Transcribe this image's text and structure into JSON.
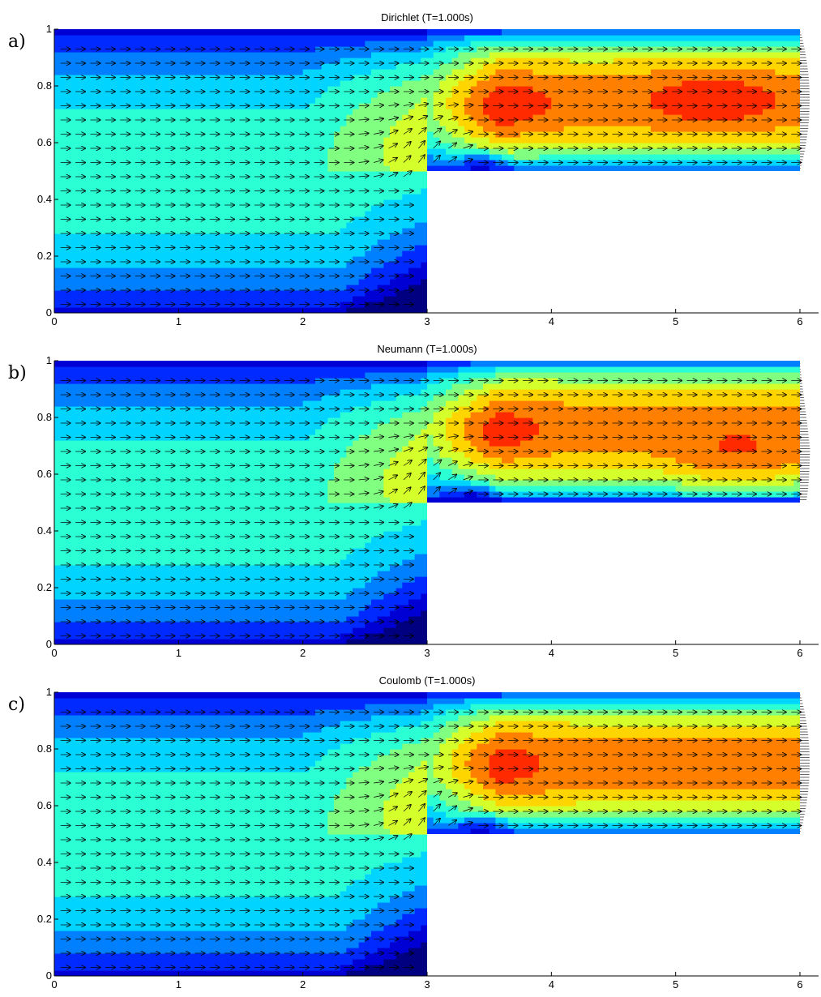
{
  "chart_data": [
    {
      "panel_label": "a)",
      "title": "Dirichlet (T=1.000s)",
      "type": "heatmap",
      "plot_kind": "filled contour of velocity magnitude with velocity vector field (quiver)",
      "domain_shape": "backward-facing step channel: inlet region 0<=x<=3, 0<=y<=1; outlet region 3<=x<=6, 0.5<=y<=1",
      "xlim": [
        0,
        6.15
      ],
      "ylim": [
        0,
        1
      ],
      "x_ticks": [
        0,
        1,
        2,
        3,
        4,
        5,
        6
      ],
      "x_tick_labels": [
        "0",
        "1",
        "2",
        "3",
        "4",
        "5",
        "6"
      ],
      "y_ticks": [
        0,
        0.2,
        0.4,
        0.6,
        0.8,
        1
      ],
      "y_tick_labels": [
        "0",
        "0.2",
        "0.4",
        "0.6",
        "0.8",
        "1"
      ],
      "colormap": "jet",
      "outlet_profile": "parabolic",
      "hotspots": [
        {
          "x": 3.45,
          "y": 0.72,
          "level": 0.82
        },
        {
          "x": 5.3,
          "y": 0.75,
          "level": 0.8
        }
      ],
      "recirculation": {
        "x": 3.45,
        "y": 0.53
      }
    },
    {
      "panel_label": "b)",
      "title": "Neumann (T=1.000s)",
      "type": "heatmap",
      "plot_kind": "filled contour of velocity magnitude with velocity vector field (quiver)",
      "domain_shape": "backward-facing step channel: inlet region 0<=x<=3, 0<=y<=1; outlet region 3<=x<=6, 0.5<=y<=1",
      "xlim": [
        0,
        6.15
      ],
      "ylim": [
        0,
        1
      ],
      "x_ticks": [
        0,
        1,
        2,
        3,
        4,
        5,
        6
      ],
      "x_tick_labels": [
        "0",
        "1",
        "2",
        "3",
        "4",
        "5",
        "6"
      ],
      "y_ticks": [
        0,
        0.2,
        0.4,
        0.6,
        0.8,
        1
      ],
      "y_tick_labels": [
        "0",
        "0.2",
        "0.4",
        "0.6",
        "0.8",
        "1"
      ],
      "colormap": "jet",
      "outlet_profile": "skewed, peak near y=0.6",
      "hotspots": [
        {
          "x": 3.35,
          "y": 0.74,
          "level": 0.82
        },
        {
          "x": 5.5,
          "y": 0.62,
          "level": 0.82
        }
      ],
      "recirculation": {
        "x": 3.35,
        "y": 0.53
      }
    },
    {
      "panel_label": "c)",
      "title": "Coulomb (T=1.000s)",
      "type": "heatmap",
      "plot_kind": "filled contour of velocity magnitude with velocity vector field (quiver)",
      "domain_shape": "backward-facing step channel: inlet region 0<=x<=3, 0<=y<=1; outlet region 3<=x<=6, 0.5<=y<=1",
      "xlim": [
        0,
        6.15
      ],
      "ylim": [
        0,
        1
      ],
      "x_ticks": [
        0,
        1,
        2,
        3,
        4,
        5,
        6
      ],
      "x_tick_labels": [
        "0",
        "1",
        "2",
        "3",
        "4",
        "5",
        "6"
      ],
      "y_ticks": [
        0,
        0.2,
        0.4,
        0.6,
        0.8,
        1
      ],
      "y_tick_labels": [
        "0",
        "0.2",
        "0.4",
        "0.6",
        "0.8",
        "1"
      ],
      "colormap": "jet",
      "outlet_profile": "parabolic",
      "hotspots": [
        {
          "x": 3.4,
          "y": 0.74,
          "level": 0.8
        },
        {
          "x": 5.0,
          "y": 0.75,
          "level": 0.7
        }
      ],
      "recirculation": {
        "x": 3.45,
        "y": 0.53
      }
    }
  ]
}
